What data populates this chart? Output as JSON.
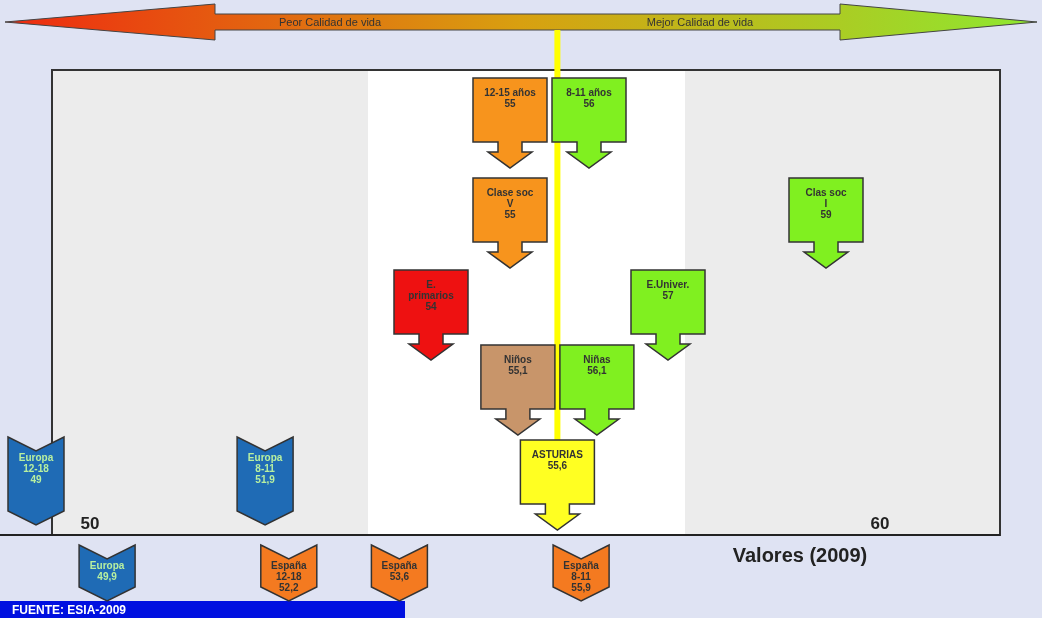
{
  "chart_data": {
    "type": "other",
    "xlabel": "Valores (2009)",
    "annotations": [
      "Peor Calidad de vida",
      "Mejor Calidad de vida",
      "FUENTE: ESIA-2009",
      "50",
      "60"
    ],
    "categories": [
      "12-15 años",
      "8-11 años",
      "Clase soc\nV",
      "Clas soc\nI",
      "E.\nprimarios",
      "E.Univer.",
      "Niños",
      "Niñas",
      "ASTURIAS",
      "Europa\n12-18",
      "Europa\n8-11",
      "Europa",
      "España\n12-18",
      "España",
      "España\n8-11"
    ],
    "values": [
      55,
      56,
      55,
      59,
      54,
      57,
      55.1,
      56.1,
      55.6,
      49,
      51.9,
      49.9,
      52.2,
      53.6,
      55.9
    ],
    "value_labels": [
      "55",
      "56",
      "55",
      "59",
      "54",
      "57",
      "55,1",
      "56,1",
      "55,6",
      "49",
      "51,9",
      "49,9",
      "52,2",
      "53,6",
      "55,9"
    ],
    "colors": [
      "#f7941d",
      "#80f020",
      "#f7941d",
      "#80f020",
      "#ee1111",
      "#80f020",
      "#c8956a",
      "#80f020",
      "#ffff22",
      "#1f6bb5",
      "#1f6bb5",
      "#1f6bb5",
      "#f47a20",
      "#f47a20",
      "#f47a20"
    ]
  }
}
